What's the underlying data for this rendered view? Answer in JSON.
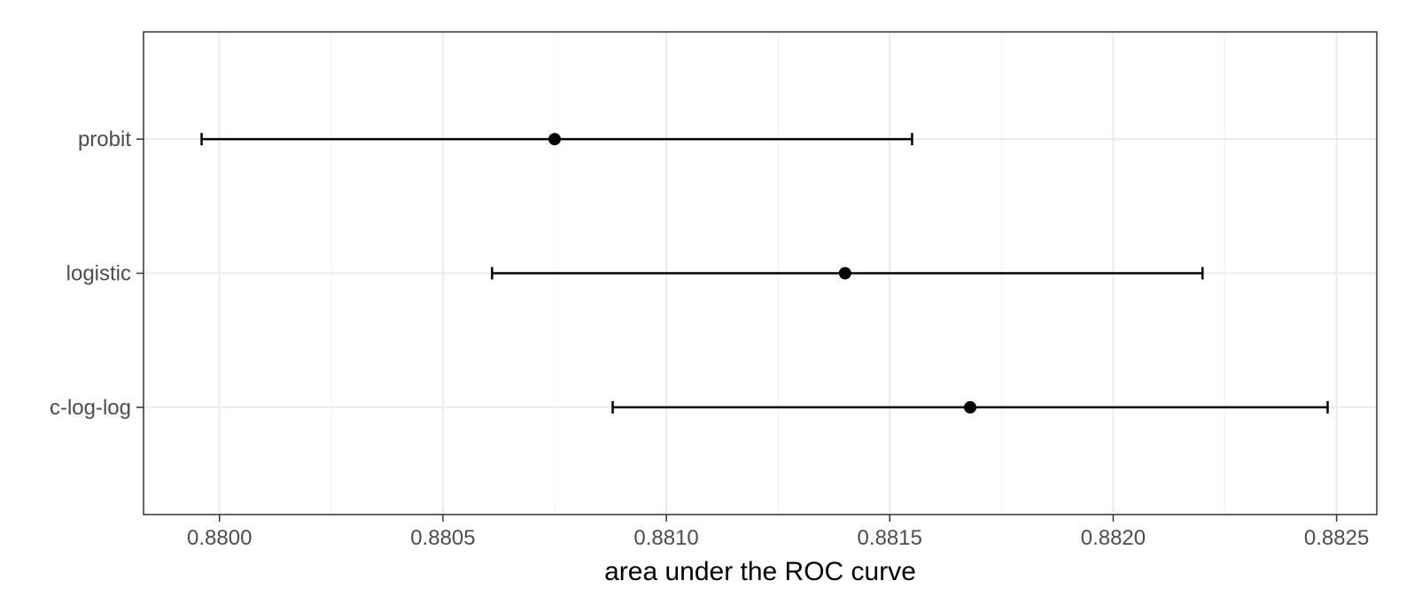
{
  "chart_data": {
    "type": "scatter",
    "title": "",
    "xlabel": "area under the ROC curve",
    "ylabel": "",
    "categories": [
      "probit",
      "logistic",
      "c-log-log"
    ],
    "estimates": [
      0.88075,
      0.8814,
      0.88168
    ],
    "ci_lower": [
      0.87996,
      0.88061,
      0.88088
    ],
    "ci_upper": [
      0.88155,
      0.8822,
      0.88248
    ],
    "xlim": [
      0.87983,
      0.88259
    ],
    "x_ticks": [
      0.88,
      0.8805,
      0.881,
      0.8815,
      0.882,
      0.8825
    ],
    "x_tick_labels": [
      "0.8800",
      "0.8805",
      "0.8810",
      "0.8815",
      "0.8820",
      "0.8825"
    ],
    "grid": true,
    "legend": "none"
  }
}
